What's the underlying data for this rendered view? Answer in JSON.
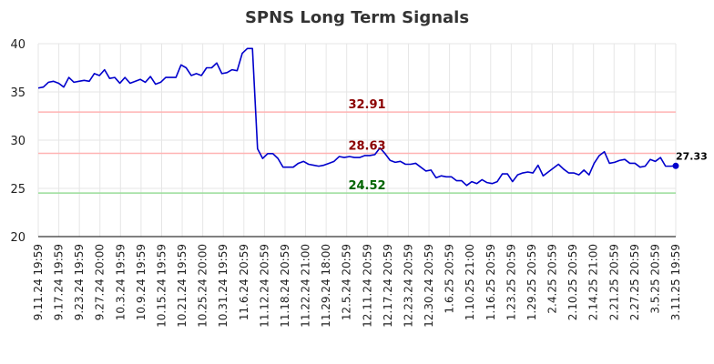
{
  "chart_data": {
    "type": "line",
    "title": "SPNS Long Term Signals",
    "xlabel": "",
    "ylabel": "",
    "ylim": [
      20,
      40
    ],
    "yticks": [
      20,
      25,
      30,
      35,
      40
    ],
    "grid": true,
    "colors": {
      "line": "#0000cc",
      "resistance": "#ffb3b3",
      "support": "#99dd99",
      "resistance_label": "#8b0000",
      "support_label": "#006400",
      "grid": "#e6e6e6"
    },
    "x_tick_labels": [
      "9.11.24 19:59",
      "9.17.24 19:59",
      "9.23.24 19:59",
      "9.27.24 20:00",
      "10.3.24 19:59",
      "10.9.24 19:59",
      "10.15.24 19:59",
      "10.21.24 19:59",
      "10.25.24 20:00",
      "10.31.24 19:59",
      "11.6.24 20:59",
      "11.12.24 20:59",
      "11.18.24 20:59",
      "11.22.24 21:00",
      "11.29.24 18:00",
      "12.5.24 20:59",
      "12.11.24 20:59",
      "12.17.24 20:59",
      "12.23.24 20:59",
      "12.30.24 20:59",
      "1.6.25 20:59",
      "1.10.25 21:00",
      "1.16.25 20:59",
      "1.23.25 20:59",
      "1.29.25 20:59",
      "2.4.25 20:59",
      "2.10.25 20:59",
      "2.14.25 21:00",
      "2.21.25 20:59",
      "2.27.25 20:59",
      "3.5.25 20:59",
      "3.11.25 19:59"
    ],
    "reference_lines": [
      {
        "value": 32.91,
        "label": "32.91",
        "kind": "resistance"
      },
      {
        "value": 28.63,
        "label": "28.63",
        "kind": "resistance"
      },
      {
        "value": 24.52,
        "label": "24.52",
        "kind": "support"
      }
    ],
    "last_value_label": "27.33",
    "series": [
      {
        "values": [
          35.4,
          35.5,
          36.0,
          36.1,
          35.9,
          35.5,
          36.5,
          36.0,
          36.1,
          36.2,
          36.1,
          36.9,
          36.7,
          37.3,
          36.4,
          36.5,
          35.9,
          36.5,
          35.9,
          36.1,
          36.3,
          36.0,
          36.6,
          35.8,
          36.0,
          36.5,
          36.5,
          36.5,
          37.8,
          37.5,
          36.7,
          36.9,
          36.7,
          37.5,
          37.5,
          38.0,
          36.9,
          37.0,
          37.3,
          37.2,
          39.0,
          39.5,
          39.5,
          29.1,
          28.1,
          28.6,
          28.6,
          28.1,
          27.2,
          27.2,
          27.2,
          27.6,
          27.8,
          27.5,
          27.4,
          27.3,
          27.4,
          27.6,
          27.8,
          28.3,
          28.2,
          28.3,
          28.2,
          28.2,
          28.4,
          28.4,
          28.5,
          29.2,
          28.6,
          27.9,
          27.7,
          27.8,
          27.5,
          27.5,
          27.6,
          27.2,
          26.8,
          26.9,
          26.1,
          26.3,
          26.2,
          26.2,
          25.8,
          25.8,
          25.3,
          25.7,
          25.5,
          25.9,
          25.6,
          25.5,
          25.7,
          26.5,
          26.5,
          25.7,
          26.4,
          26.6,
          26.7,
          26.6,
          27.4,
          26.3,
          26.7,
          27.1,
          27.5,
          27.0,
          26.6,
          26.6,
          26.4,
          26.9,
          26.4,
          27.6,
          28.4,
          28.8,
          27.6,
          27.7,
          27.9,
          28.0,
          27.6,
          27.6,
          27.2,
          27.3,
          28.0,
          27.8,
          28.2,
          27.3,
          27.3,
          27.33
        ]
      }
    ]
  }
}
